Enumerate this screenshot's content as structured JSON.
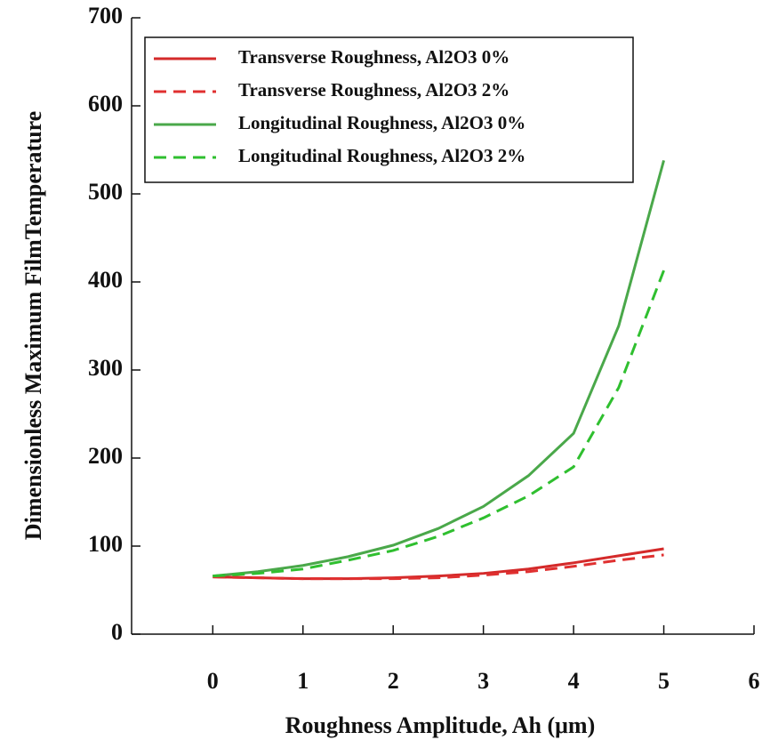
{
  "chart_data": {
    "type": "line",
    "y_label": "Dimensionless Maximum FilmTemperature",
    "x_label": "Roughness Amplitude, Ah (μm)",
    "x": [
      0,
      0.5,
      1,
      1.5,
      2,
      2.5,
      3,
      3.5,
      4,
      4.5,
      5
    ],
    "series": [
      {
        "name": "Transverse Roughness, Al2O3  0%",
        "color": "#d42a2a",
        "dash": "solid",
        "values": [
          65,
          64,
          63,
          63,
          64,
          66,
          69,
          74,
          81,
          89,
          97
        ]
      },
      {
        "name": "Transverse Roughness, Al2O3  2%",
        "color": "#e03030",
        "dash": "dashed",
        "values": [
          65,
          64,
          63,
          63,
          63,
          64,
          67,
          71,
          77,
          84,
          90
        ]
      },
      {
        "name": "Longitudinal Roughness, Al2O3 0%",
        "color": "#4aa84a",
        "dash": "solid",
        "values": [
          66,
          71,
          78,
          88,
          101,
          120,
          145,
          180,
          228,
          350,
          538
        ]
      },
      {
        "name": "Longitudinal Roughness, Al2O3  2%",
        "color": "#2fbf2f",
        "dash": "dashed",
        "values": [
          66,
          69,
          74,
          84,
          95,
          111,
          132,
          157,
          190,
          280,
          413
        ]
      }
    ],
    "xlim": [
      -0.9,
      6
    ],
    "xticks": [
      0,
      1,
      2,
      3,
      4,
      5,
      6
    ],
    "ylim": [
      0,
      700
    ],
    "yticks": [
      0,
      100,
      200,
      300,
      400,
      500,
      600,
      700
    ],
    "legend": "upper-left",
    "grid": false
  }
}
